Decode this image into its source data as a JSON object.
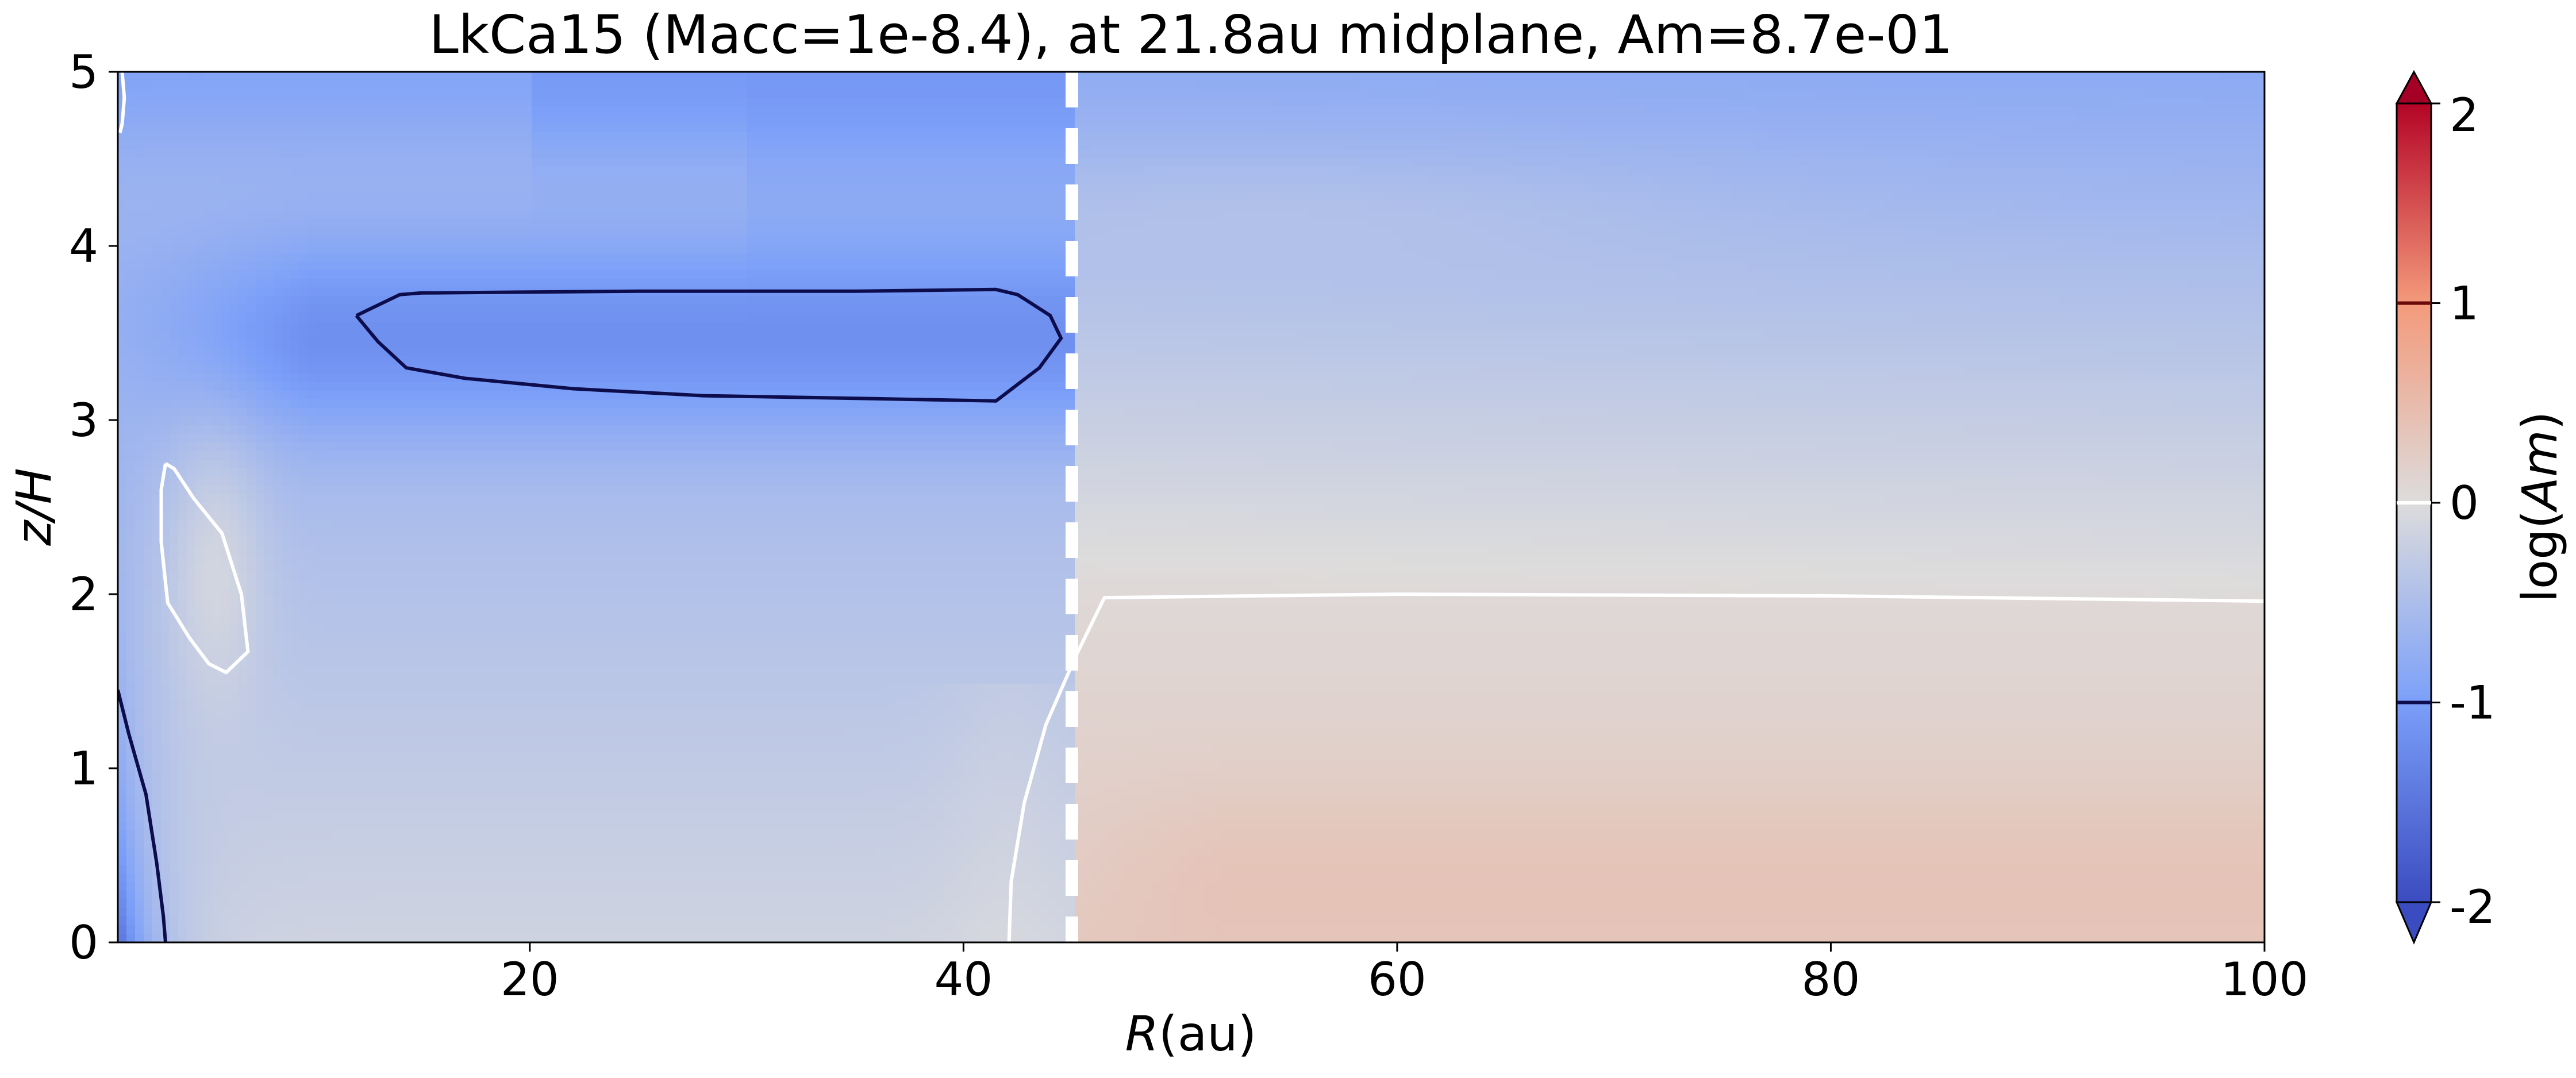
{
  "chart_data": {
    "type": "heatmap",
    "title": "LkCa15 (Macc=1e-8.4), at 21.8au midplane, Am=8.7e-01",
    "xlabel": "R",
    "xlabel_unit": "(au)",
    "ylabel": "z/H",
    "xlim": [
      1,
      100
    ],
    "ylim": [
      0,
      5
    ],
    "x_ticks": [
      20,
      40,
      60,
      80,
      100
    ],
    "x_tick_labels": [
      "20",
      "40",
      "60",
      "80",
      "100"
    ],
    "y_ticks": [
      0,
      1,
      2,
      3,
      4,
      5
    ],
    "y_tick_labels": [
      "0",
      "1",
      "2",
      "3",
      "4",
      "5"
    ],
    "colorbar": {
      "label": "log(Am)",
      "label_prefix": "log(",
      "label_var": "Am",
      "label_suffix": ")",
      "range": [
        -2,
        2
      ],
      "colormap": "coolwarm",
      "extend": "both",
      "ticks": [
        -2,
        -1,
        0,
        1,
        2
      ],
      "tick_labels": [
        "-2",
        "-1",
        "0",
        "1",
        "2"
      ],
      "contour_levels": [
        {
          "value": -1,
          "color": "#0d0d4d"
        },
        {
          "value": 0,
          "color": "#ffffff"
        },
        {
          "value": 1,
          "color": "#6b0a0a"
        }
      ]
    },
    "vertical_marker": {
      "x": 45,
      "style": "dashed",
      "color": "#ffffff"
    },
    "contours": [
      {
        "level": -1,
        "color": "#0d0d4d",
        "points": [
          [
            1,
            1.45
          ],
          [
            1.5,
            1.2
          ],
          [
            2.3,
            0.85
          ],
          [
            2.8,
            0.45
          ],
          [
            3.1,
            0.15
          ],
          [
            3.2,
            0
          ]
        ]
      },
      {
        "level": -1,
        "color": "#0d0d4d",
        "points": [
          [
            12,
            3.6
          ],
          [
            13,
            3.45
          ],
          [
            14.3,
            3.3
          ],
          [
            17,
            3.24
          ],
          [
            22,
            3.18
          ],
          [
            28,
            3.14
          ],
          [
            37,
            3.12
          ],
          [
            41.5,
            3.11
          ],
          [
            43.5,
            3.3
          ],
          [
            44.5,
            3.47
          ],
          [
            44,
            3.6
          ],
          [
            42.5,
            3.72
          ],
          [
            41.5,
            3.75
          ],
          [
            35,
            3.74
          ],
          [
            25,
            3.74
          ],
          [
            15,
            3.73
          ],
          [
            14,
            3.72
          ],
          [
            12,
            3.6
          ]
        ]
      },
      {
        "level": 0,
        "color": "#ffffff",
        "points": [
          [
            3.2,
            2.75
          ],
          [
            3,
            2.6
          ],
          [
            3,
            2.3
          ],
          [
            3.3,
            1.95
          ],
          [
            4.3,
            1.75
          ],
          [
            5.2,
            1.6
          ],
          [
            6,
            1.55
          ],
          [
            7,
            1.67
          ],
          [
            6.7,
            2.0
          ],
          [
            5.8,
            2.35
          ],
          [
            4.5,
            2.55
          ],
          [
            3.6,
            2.72
          ],
          [
            3.2,
            2.75
          ]
        ]
      },
      {
        "level": 0,
        "color": "#ffffff",
        "points": [
          [
            1.2,
            5
          ],
          [
            1.3,
            4.85
          ],
          [
            1.2,
            4.7
          ],
          [
            1.1,
            4.65
          ]
        ]
      },
      {
        "level": 0,
        "color": "#ffffff",
        "points": [
          [
            42.1,
            0
          ],
          [
            42.2,
            0.35
          ],
          [
            42.8,
            0.8
          ],
          [
            43.8,
            1.25
          ],
          [
            45.2,
            1.65
          ],
          [
            46.5,
            1.98
          ],
          [
            60,
            2.0
          ],
          [
            80,
            1.99
          ],
          [
            100,
            1.96
          ]
        ]
      }
    ],
    "field_samples": [
      {
        "R": 1,
        "z": 0.2,
        "log_Am": -1.6
      },
      {
        "R": 3,
        "z": 0.5,
        "log_Am": -0.8
      },
      {
        "R": 8,
        "z": 1.0,
        "log_Am": -0.3
      },
      {
        "R": 20,
        "z": 0.5,
        "log_Am": -0.1
      },
      {
        "R": 20,
        "z": 2.0,
        "log_Am": -0.45
      },
      {
        "R": 28,
        "z": 3.45,
        "log_Am": -1.1
      },
      {
        "R": 30,
        "z": 4.5,
        "log_Am": -0.65
      },
      {
        "R": 30,
        "z": 5.0,
        "log_Am": -0.8
      },
      {
        "R": 5,
        "z": 4.3,
        "log_Am": -0.1
      },
      {
        "R": 44,
        "z": 1.0,
        "log_Am": -0.05
      },
      {
        "R": 60,
        "z": 0.3,
        "log_Am": 0.45
      },
      {
        "R": 80,
        "z": 1.2,
        "log_Am": 0.3
      },
      {
        "R": 70,
        "z": 2.6,
        "log_Am": -0.15
      },
      {
        "R": 60,
        "z": 4.2,
        "log_Am": -0.35
      },
      {
        "R": 90,
        "z": 4.8,
        "log_Am": -0.8
      }
    ]
  }
}
